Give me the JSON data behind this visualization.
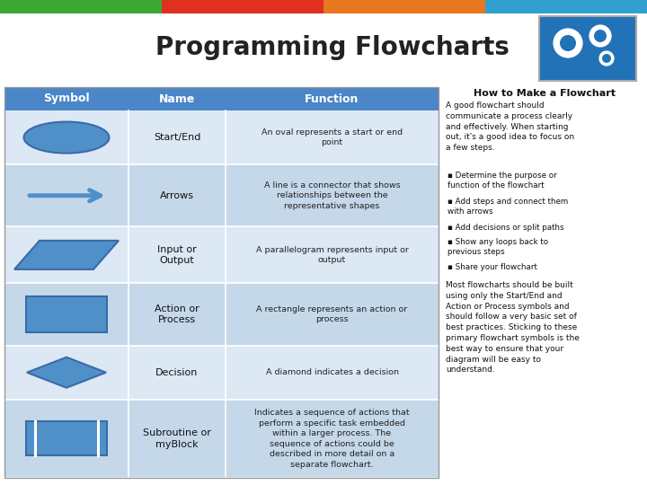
{
  "title": "Programming Flowcharts",
  "header_bar_colors": [
    "#3aaa35",
    "#e03020",
    "#e87820",
    "#30a0d0"
  ],
  "table_header_bg": "#4a86c8",
  "table_row_bg_even": "#dce8f4",
  "table_row_bg_odd": "#c5d8ea",
  "symbol_color": "#5090c8",
  "symbol_stroke": "#3a6aaa",
  "col_symbol": "Symbol",
  "col_name": "Name",
  "col_function": "Function",
  "rows": [
    {
      "name": "Start/End",
      "function": "An oval represents a start or end\npoint",
      "shape": "oval"
    },
    {
      "name": "Arrows",
      "function": "A line is a connector that shows\nrelationships between the\nrepresentative shapes",
      "shape": "arrow"
    },
    {
      "name": "Input or\nOutput",
      "function": "A parallelogram represents input or\noutput",
      "shape": "parallelogram"
    },
    {
      "name": "Action or\nProcess",
      "function": "A rectangle represents an action or\nprocess",
      "shape": "rectangle"
    },
    {
      "name": "Decision",
      "function": "A diamond indicates a decision",
      "shape": "diamond"
    },
    {
      "name": "Subroutine or\nmyBlock",
      "function": "Indicates a sequence of actions that\nperform a specific task embedded\nwithin a larger process. The\nsequence of actions could be\ndescribed in more detail on a\nseparate flowchart.",
      "shape": "subroutine"
    }
  ],
  "right_panel_title": "How to Make a Flowchart",
  "right_panel_intro": "A good flowchart should\ncommunicate a process clearly\nand effectively. When starting\nout, it's a good idea to focus on\na few steps.",
  "right_panel_bullets": [
    "Determine the purpose or\nfunction of the flowchart",
    "Add steps and connect them\nwith arrows",
    "Add decisions or split paths",
    "Show any loops back to\nprevious steps",
    "Share your flowchart"
  ],
  "right_panel_footer": "Most flowcharts should be built\nusing only the Start/End and\nAction or Process symbols and\nshould follow a very basic set of\nbest practices. Sticking to these\nprimary flowchart symbols is the\nbest way to ensure that your\ndiagram will be easy to\nunderstand."
}
